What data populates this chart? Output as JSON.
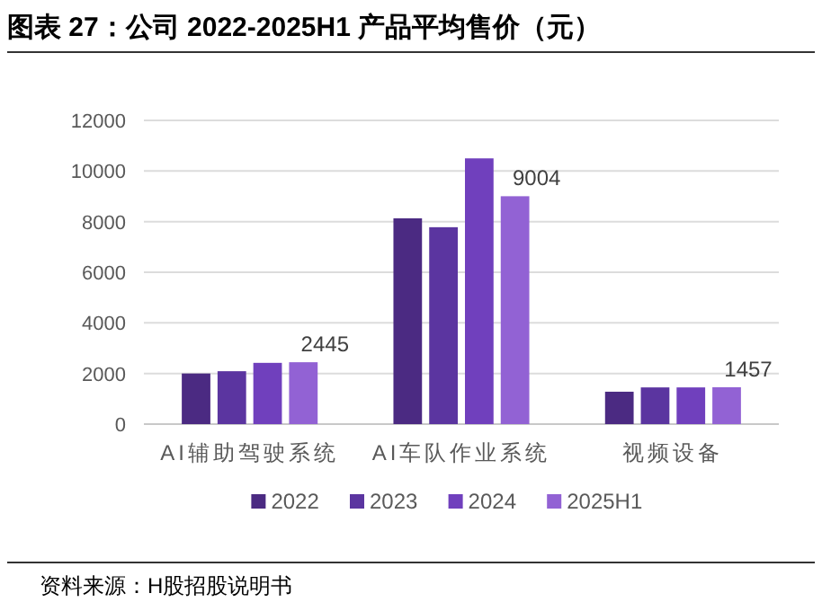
{
  "chart_data": {
    "type": "bar",
    "title": "图表 27：公司 2022-2025H1 产品平均售价（元）",
    "categories": [
      "AI辅助驾驶系统",
      "AI车队作业系统",
      "视频设备"
    ],
    "series": [
      {
        "name": "2022",
        "color": "#4b2a82",
        "values": [
          2000,
          8130,
          1280
        ]
      },
      {
        "name": "2023",
        "color": "#5b35a0",
        "values": [
          2090,
          7780,
          1450
        ]
      },
      {
        "name": "2024",
        "color": "#7040bd",
        "values": [
          2420,
          10500,
          1450
        ]
      },
      {
        "name": "2025H1",
        "color": "#9262d4",
        "values": [
          2445,
          9004,
          1457
        ],
        "value_labels": [
          "2445",
          "9004",
          "1457"
        ]
      }
    ],
    "ylim": [
      0,
      12000
    ],
    "yticks": [
      0,
      2000,
      4000,
      6000,
      8000,
      10000,
      12000
    ],
    "grid": "y",
    "legend": "bottom",
    "annotations": [
      "资料来源：H股招股说明书"
    ]
  }
}
